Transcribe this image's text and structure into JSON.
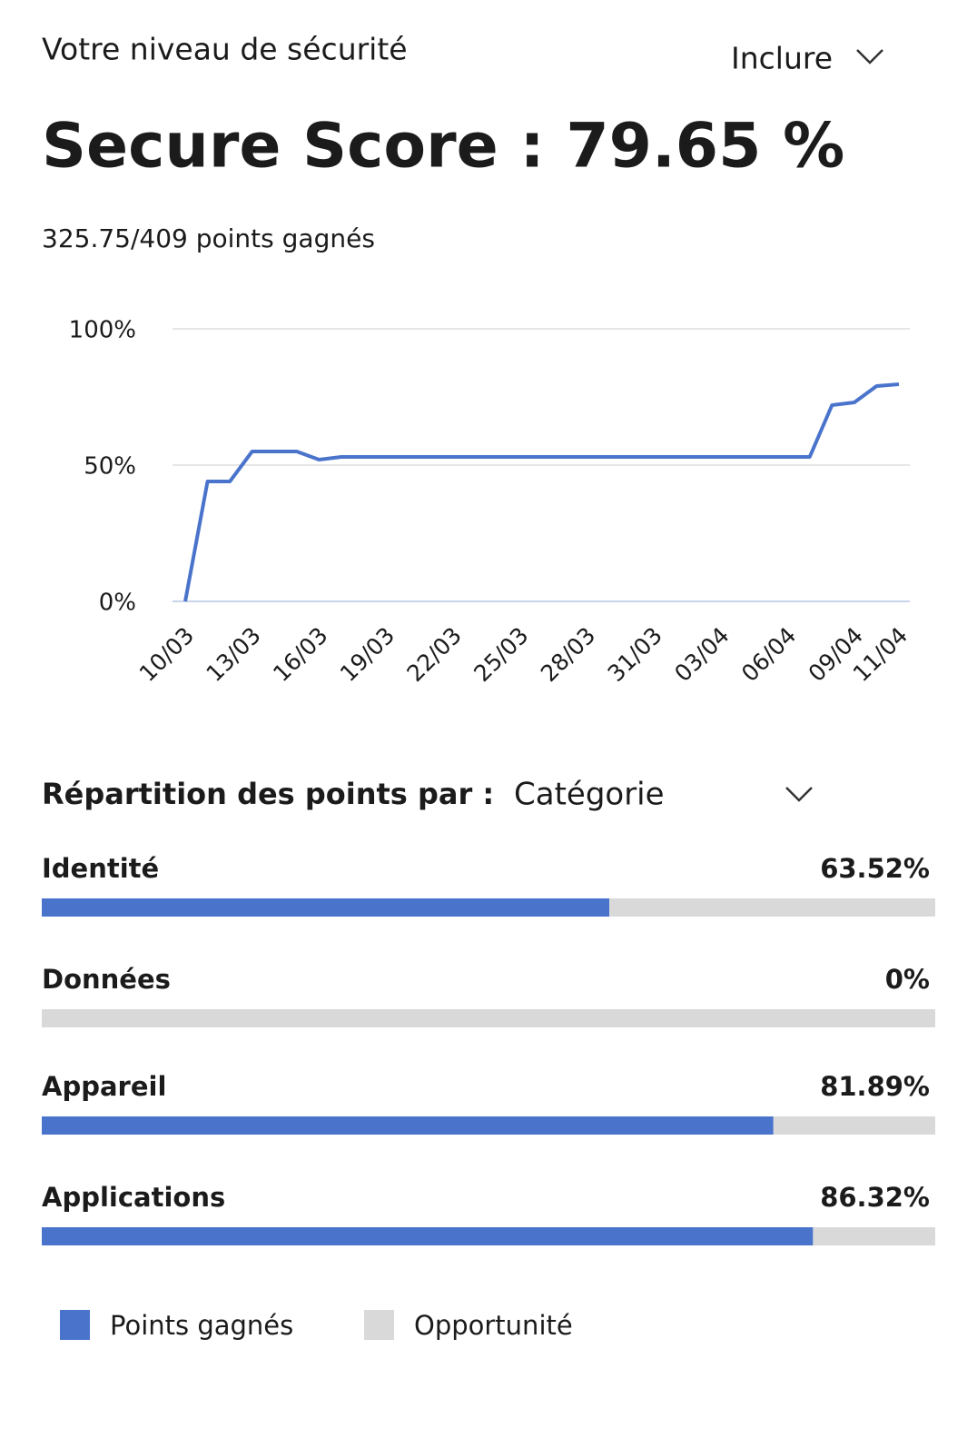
{
  "header": {
    "title": "Votre niveau de sécurité",
    "filter": "Inclure",
    "score": "Secure Score : 79.65 %",
    "points": "325.75/409 points gagnés"
  },
  "breakdown": {
    "label": "Répartition des points par :",
    "selection": "Catégorie"
  },
  "chart_data": [
    {
      "type": "line",
      "color": "#4a74cc",
      "grid": true,
      "categories": [
        "10/03",
        null,
        null,
        "13/03",
        null,
        null,
        "16/03",
        null,
        null,
        "19/03",
        null,
        null,
        "22/03",
        null,
        null,
        "25/03",
        null,
        null,
        "28/03",
        null,
        null,
        "31/03",
        null,
        null,
        "03/04",
        null,
        null,
        "06/04",
        null,
        null,
        "09/04",
        null,
        "11/04"
      ],
      "values": [
        0,
        44,
        44,
        55,
        55,
        55,
        52,
        53,
        53,
        53,
        53,
        53,
        53,
        53,
        53,
        53,
        53,
        53,
        53,
        53,
        53,
        53,
        53,
        53,
        53,
        53,
        53,
        53,
        53,
        72,
        73,
        79,
        79.65
      ],
      "ylim": [
        0,
        100
      ],
      "yticks": [
        {
          "value": 0,
          "label": "0%"
        },
        {
          "value": 50,
          "label": "50%"
        },
        {
          "value": 100,
          "label": "100%"
        }
      ]
    },
    {
      "type": "bar",
      "orientation": "horizontal",
      "stacked": true,
      "legend": "bottom",
      "categories": [
        "Identité",
        "Données",
        "Appareil",
        "Applications"
      ],
      "xlim": [
        0,
        100
      ],
      "series": [
        {
          "name": "Points gagnés",
          "color": "#4a74cc",
          "values": [
            63.52,
            0,
            81.89,
            86.32
          ],
          "value_labels": [
            "63.52%",
            "0%",
            "81.89%",
            "86.32%"
          ]
        },
        {
          "name": "Opportunité",
          "color": "#d9d9d9",
          "values": [
            36.48,
            100,
            18.11,
            13.68
          ]
        }
      ]
    }
  ]
}
